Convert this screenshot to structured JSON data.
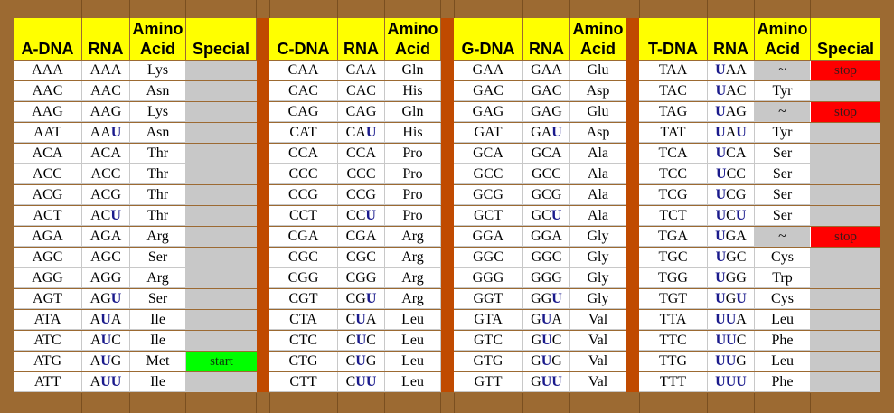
{
  "headers": {
    "a": {
      "dna": "A-DNA",
      "rna": "RNA",
      "amino1": "Amino",
      "amino2": "Acid",
      "special": "Special"
    },
    "c": {
      "dna": "C-DNA",
      "rna": "RNA",
      "amino1": "Amino",
      "amino2": "Acid"
    },
    "g": {
      "dna": "G-DNA",
      "rna": "RNA",
      "amino1": "Amino",
      "amino2": "Acid"
    },
    "t": {
      "dna": "T-DNA",
      "rna": "RNA",
      "amino1": "Amino",
      "amino2": "Acid",
      "special": "Special"
    }
  },
  "colors": {
    "header": "#ffff00",
    "frame": "#9C6A32",
    "separator": "#c04a00",
    "stop": "#ff0000",
    "start": "#00ff00",
    "special_blank": "#c8c8c8",
    "rna_u": "#1a1a8c"
  },
  "rows": [
    {
      "a": [
        "AAA",
        "AAA",
        "Lys",
        ""
      ],
      "c": [
        "CAA",
        "CAA",
        "Gln"
      ],
      "g": [
        "GAA",
        "GAA",
        "Glu"
      ],
      "t": [
        "TAA",
        "UAA",
        "~",
        "stop"
      ]
    },
    {
      "a": [
        "AAC",
        "AAC",
        "Asn",
        ""
      ],
      "c": [
        "CAC",
        "CAC",
        "His"
      ],
      "g": [
        "GAC",
        "GAC",
        "Asp"
      ],
      "t": [
        "TAC",
        "UAC",
        "Tyr",
        ""
      ]
    },
    {
      "a": [
        "AAG",
        "AAG",
        "Lys",
        ""
      ],
      "c": [
        "CAG",
        "CAG",
        "Gln"
      ],
      "g": [
        "GAG",
        "GAG",
        "Glu"
      ],
      "t": [
        "TAG",
        "UAG",
        "~",
        "stop"
      ]
    },
    {
      "a": [
        "AAT",
        "AAU",
        "Asn",
        ""
      ],
      "c": [
        "CAT",
        "CAU",
        "His"
      ],
      "g": [
        "GAT",
        "GAU",
        "Asp"
      ],
      "t": [
        "TAT",
        "UAU",
        "Tyr",
        ""
      ]
    },
    {
      "a": [
        "ACA",
        "ACA",
        "Thr",
        ""
      ],
      "c": [
        "CCA",
        "CCA",
        "Pro"
      ],
      "g": [
        "GCA",
        "GCA",
        "Ala"
      ],
      "t": [
        "TCA",
        "UCA",
        "Ser",
        ""
      ]
    },
    {
      "a": [
        "ACC",
        "ACC",
        "Thr",
        ""
      ],
      "c": [
        "CCC",
        "CCC",
        "Pro"
      ],
      "g": [
        "GCC",
        "GCC",
        "Ala"
      ],
      "t": [
        "TCC",
        "UCC",
        "Ser",
        ""
      ]
    },
    {
      "a": [
        "ACG",
        "ACG",
        "Thr",
        ""
      ],
      "c": [
        "CCG",
        "CCG",
        "Pro"
      ],
      "g": [
        "GCG",
        "GCG",
        "Ala"
      ],
      "t": [
        "TCG",
        "UCG",
        "Ser",
        ""
      ]
    },
    {
      "a": [
        "ACT",
        "ACU",
        "Thr",
        ""
      ],
      "c": [
        "CCT",
        "CCU",
        "Pro"
      ],
      "g": [
        "GCT",
        "GCU",
        "Ala"
      ],
      "t": [
        "TCT",
        "UCU",
        "Ser",
        ""
      ]
    },
    {
      "a": [
        "AGA",
        "AGA",
        "Arg",
        ""
      ],
      "c": [
        "CGA",
        "CGA",
        "Arg"
      ],
      "g": [
        "GGA",
        "GGA",
        "Gly"
      ],
      "t": [
        "TGA",
        "UGA",
        "~",
        "stop"
      ]
    },
    {
      "a": [
        "AGC",
        "AGC",
        "Ser",
        ""
      ],
      "c": [
        "CGC",
        "CGC",
        "Arg"
      ],
      "g": [
        "GGC",
        "GGC",
        "Gly"
      ],
      "t": [
        "TGC",
        "UGC",
        "Cys",
        ""
      ]
    },
    {
      "a": [
        "AGG",
        "AGG",
        "Arg",
        ""
      ],
      "c": [
        "CGG",
        "CGG",
        "Arg"
      ],
      "g": [
        "GGG",
        "GGG",
        "Gly"
      ],
      "t": [
        "TGG",
        "UGG",
        "Trp",
        ""
      ]
    },
    {
      "a": [
        "AGT",
        "AGU",
        "Ser",
        ""
      ],
      "c": [
        "CGT",
        "CGU",
        "Arg"
      ],
      "g": [
        "GGT",
        "GGU",
        "Gly"
      ],
      "t": [
        "TGT",
        "UGU",
        "Cys",
        ""
      ]
    },
    {
      "a": [
        "ATA",
        "AUA",
        "Ile",
        ""
      ],
      "c": [
        "CTA",
        "CUA",
        "Leu"
      ],
      "g": [
        "GTA",
        "GUA",
        "Val"
      ],
      "t": [
        "TTA",
        "UUA",
        "Leu",
        ""
      ]
    },
    {
      "a": [
        "ATC",
        "AUC",
        "Ile",
        ""
      ],
      "c": [
        "CTC",
        "CUC",
        "Leu"
      ],
      "g": [
        "GTC",
        "GUC",
        "Val"
      ],
      "t": [
        "TTC",
        "UUC",
        "Phe",
        ""
      ]
    },
    {
      "a": [
        "ATG",
        "AUG",
        "Met",
        "start"
      ],
      "c": [
        "CTG",
        "CUG",
        "Leu"
      ],
      "g": [
        "GTG",
        "GUG",
        "Val"
      ],
      "t": [
        "TTG",
        "UUG",
        "Leu",
        ""
      ]
    },
    {
      "a": [
        "ATT",
        "AUU",
        "Ile",
        ""
      ],
      "c": [
        "CTT",
        "CUU",
        "Leu"
      ],
      "g": [
        "GTT",
        "GUU",
        "Val"
      ],
      "t": [
        "TTT",
        "UUU",
        "Phe",
        ""
      ]
    }
  ]
}
